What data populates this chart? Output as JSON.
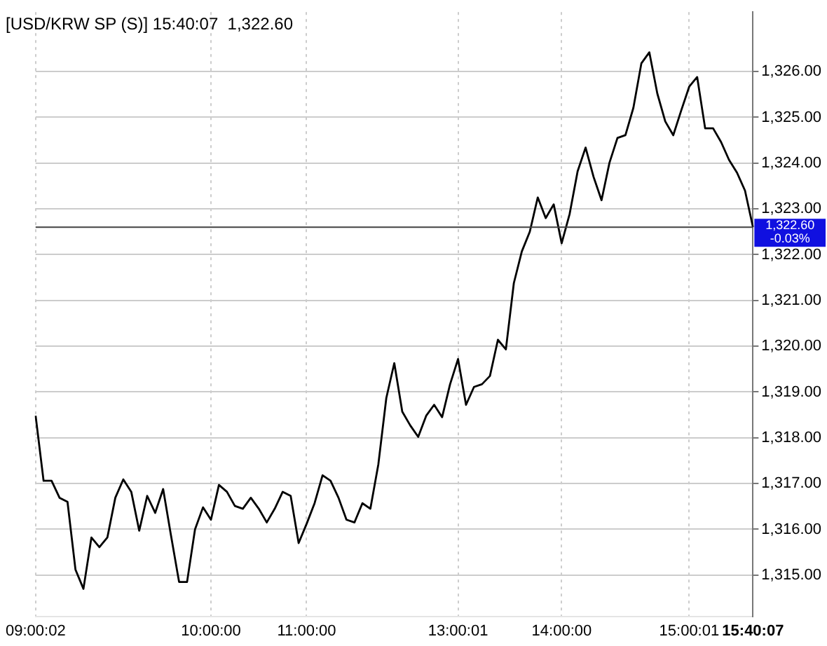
{
  "chart_data": {
    "type": "line",
    "title": "[USD/KRW SP (S)] 15:40:07  1,322.60",
    "categories": [
      "09:00:02",
      null,
      null,
      null,
      null,
      null,
      null,
      null,
      null,
      null,
      null,
      null,
      null,
      null,
      null,
      null,
      null,
      null,
      null,
      null,
      null,
      null,
      "10:00:00",
      null,
      null,
      null,
      null,
      null,
      null,
      null,
      null,
      null,
      null,
      null,
      "11:00:00",
      null,
      null,
      null,
      null,
      null,
      null,
      null,
      null,
      null,
      null,
      null,
      null,
      null,
      null,
      null,
      null,
      null,
      null,
      "13:00:01",
      null,
      null,
      null,
      null,
      null,
      null,
      null,
      null,
      null,
      null,
      null,
      null,
      "14:00:00",
      null,
      null,
      null,
      null,
      null,
      null,
      null,
      null,
      null,
      null,
      null,
      null,
      null,
      null,
      null,
      "15:00:01",
      null,
      null,
      null,
      null,
      null,
      null,
      null,
      "15:40:07"
    ],
    "series": [
      {
        "color": "#000000",
        "values": [
          1318.48,
          1317.06,
          1317.06,
          1316.69,
          1316.6,
          1315.12,
          1314.7,
          1315.82,
          1315.61,
          1315.82,
          1316.69,
          1317.09,
          1316.82,
          1315.97,
          1316.73,
          1316.36,
          1316.88,
          1315.85,
          1314.85,
          1314.85,
          1316.0,
          1316.48,
          1316.21,
          1316.97,
          1316.82,
          1316.51,
          1316.45,
          1316.69,
          1316.45,
          1316.15,
          1316.45,
          1316.82,
          1316.73,
          1315.7,
          1316.12,
          1316.57,
          1317.18,
          1317.06,
          1316.69,
          1316.21,
          1316.15,
          1316.57,
          1316.45,
          1317.42,
          1318.87,
          1319.63,
          1318.57,
          1318.27,
          1318.02,
          1318.48,
          1318.72,
          1318.45,
          1319.17,
          1319.72,
          1318.72,
          1319.11,
          1319.17,
          1319.35,
          1320.14,
          1319.93,
          1321.38,
          1322.07,
          1322.5,
          1323.25,
          1322.8,
          1323.1,
          1322.25,
          1322.89,
          1323.82,
          1324.34,
          1323.7,
          1323.19,
          1324.01,
          1324.55,
          1324.61,
          1325.21,
          1326.18,
          1326.42,
          1325.52,
          1324.91,
          1324.61,
          1325.15,
          1325.67,
          1325.88,
          1324.76,
          1324.76,
          1324.46,
          1324.07,
          1323.79,
          1323.4,
          1322.6
        ]
      }
    ],
    "ylim": [
      1314.1,
      1327.3
    ],
    "yticks": [
      {
        "value": 1315,
        "label": "1,315.00"
      },
      {
        "value": 1316,
        "label": "1,316.00"
      },
      {
        "value": 1317,
        "label": "1,317.00"
      },
      {
        "value": 1318,
        "label": "1,318.00"
      },
      {
        "value": 1319,
        "label": "1,319.00"
      },
      {
        "value": 1320,
        "label": "1,320.00"
      },
      {
        "value": 1321,
        "label": "1,321.00"
      },
      {
        "value": 1322,
        "label": "1,322.00"
      },
      {
        "value": 1323,
        "label": "1,323.00"
      },
      {
        "value": 1324,
        "label": "1,324.00"
      },
      {
        "value": 1325,
        "label": "1,325.00"
      },
      {
        "value": 1326,
        "label": "1,326.00"
      }
    ],
    "ref_lines": [
      {
        "axis": "y",
        "value": 1322.6,
        "label": "1,322.60",
        "color": "#404040"
      }
    ],
    "annotations": [
      "-0.03%"
    ],
    "grid": true,
    "legend": false
  }
}
